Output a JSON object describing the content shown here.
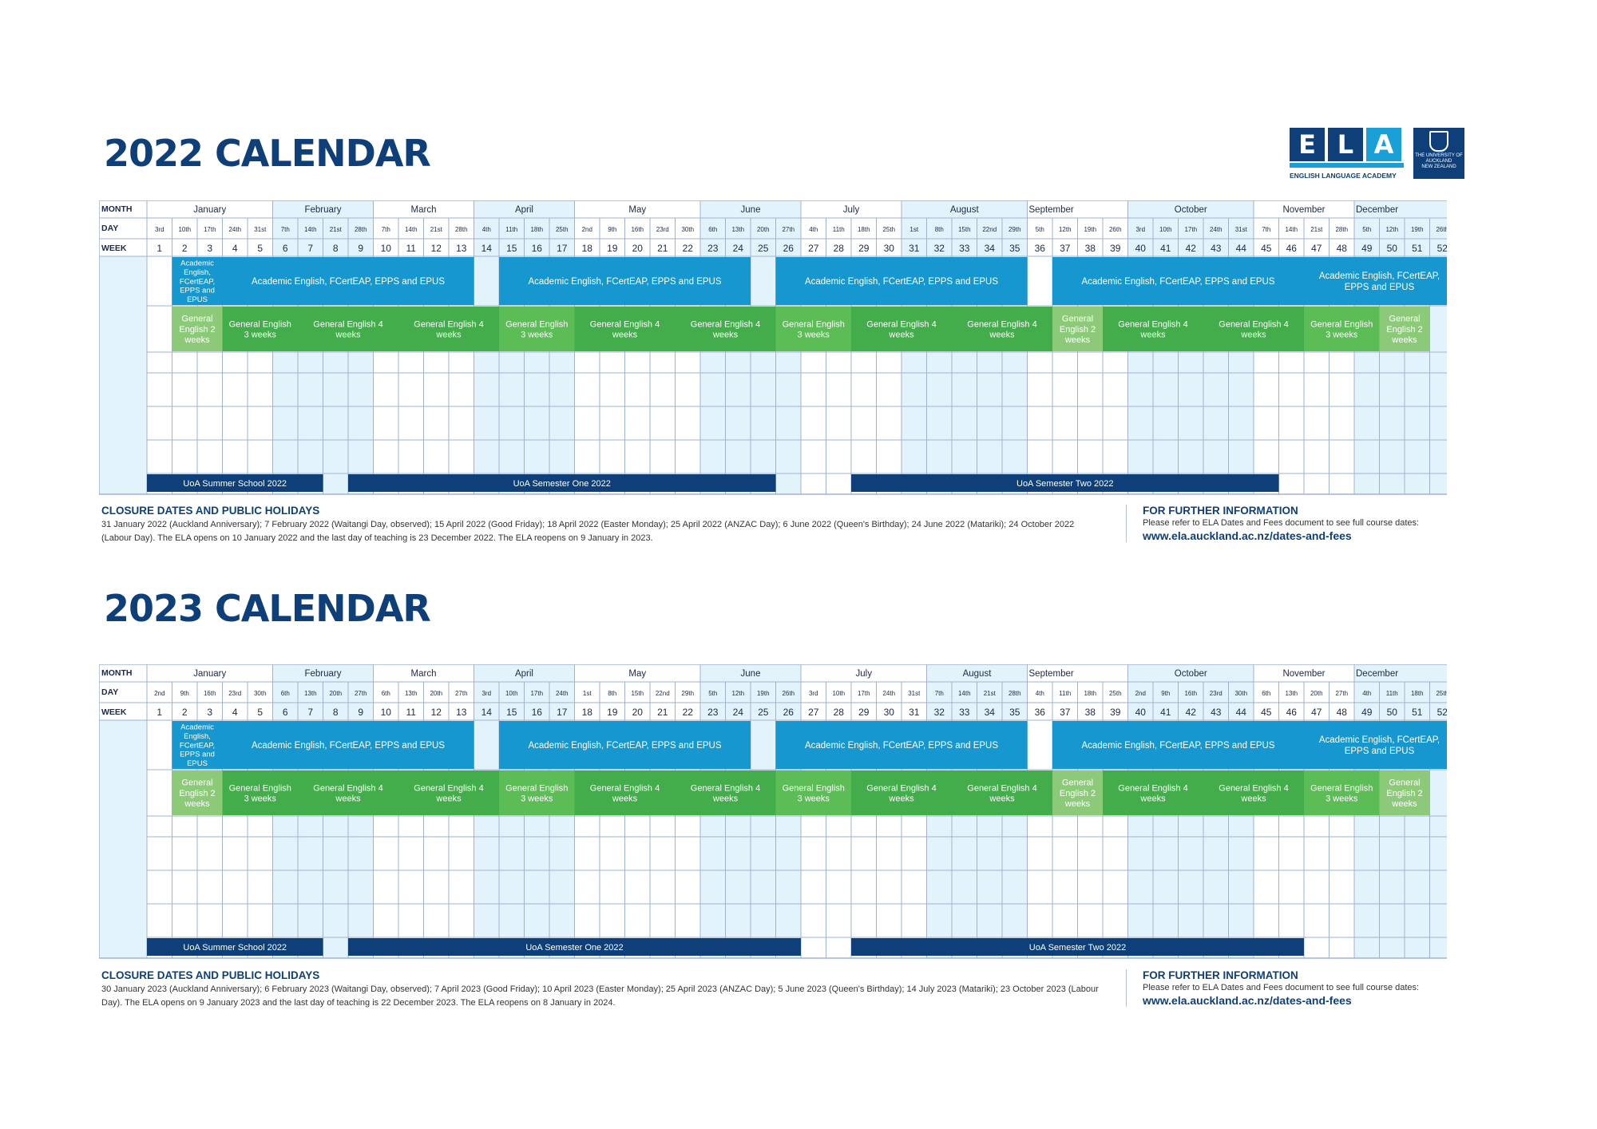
{
  "logo": {
    "letters": [
      "E",
      "L",
      "A"
    ],
    "subtitle": "ENGLISH LANGUAGE ACADEMY",
    "university": [
      "THE UNIVERSITY OF",
      "AUCKLAND",
      "NEW ZEALAND"
    ]
  },
  "row_labels": {
    "month": "MONTH",
    "day": "DAY",
    "week": "WEEK"
  },
  "colors": {
    "title": "#0e3f78",
    "grid": "#9fb3cc",
    "light_col": "#e3f3fc",
    "academic": "#1797cf",
    "general": "#42ad4a",
    "general_light": "#8cca7a",
    "uoa": "#0e3f78",
    "header_bg": "#ffffff"
  },
  "months": [
    {
      "name": "January",
      "start": 1,
      "span": 5
    },
    {
      "name": "February",
      "start": 6,
      "span": 4
    },
    {
      "name": "March",
      "start": 10,
      "span": 4
    },
    {
      "name": "April",
      "start": 14,
      "span": 4
    },
    {
      "name": "May",
      "start": 18,
      "span": 5
    },
    {
      "name": "June",
      "start": 23,
      "span": 4
    },
    {
      "name": "July",
      "start": 27,
      "span": 4
    },
    {
      "name": "August",
      "start": 31,
      "span": 5
    },
    {
      "name": "September",
      "start": 36,
      "span": 4
    },
    {
      "name": "October",
      "start": 40,
      "span": 5
    },
    {
      "name": "November",
      "start": 45,
      "span": 4
    },
    {
      "name": "December",
      "start": 49,
      "span": 4
    }
  ],
  "calendars": [
    {
      "title": "2022 CALENDAR",
      "days": [
        "3rd",
        "10th",
        "17th",
        "24th",
        "31st",
        "7th",
        "14th",
        "21st",
        "28th",
        "7th",
        "14th",
        "21st",
        "28th",
        "4th",
        "11th",
        "18th",
        "25th",
        "2nd",
        "9th",
        "16th",
        "23rd",
        "30th",
        "6th",
        "13th",
        "20th",
        "27th",
        "4th",
        "11th",
        "18th",
        "25th",
        "1st",
        "8th",
        "15th",
        "22nd",
        "29th",
        "5th",
        "12th",
        "19th",
        "26th",
        "3rd",
        "10th",
        "17th",
        "24th",
        "31st",
        "7th",
        "14th",
        "21st",
        "28th",
        "5th",
        "12th",
        "19th",
        "26th"
      ],
      "months_override": [
        {
          "name": "January",
          "start": 1,
          "span": 5
        },
        {
          "name": "February",
          "start": 6,
          "span": 4
        },
        {
          "name": "March",
          "start": 10,
          "span": 4
        },
        {
          "name": "April",
          "start": 14,
          "span": 4
        },
        {
          "name": "May",
          "start": 18,
          "span": 5
        },
        {
          "name": "June",
          "start": 23,
          "span": 4
        },
        {
          "name": "July",
          "start": 27,
          "span": 4
        },
        {
          "name": "August",
          "start": 31,
          "span": 5
        },
        {
          "name": "September",
          "start": 36,
          "span": 4
        },
        {
          "name": "October",
          "start": 40,
          "span": 5
        },
        {
          "name": "November",
          "start": 45,
          "span": 4
        },
        {
          "name": "December",
          "start": 49,
          "span": 4
        }
      ],
      "academic": [
        {
          "start": 2,
          "end": 3,
          "label": "Academic English, FCertEAP, EPPS and EPUS"
        },
        {
          "start": 4,
          "end": 13,
          "label": "Academic English, FCertEAP, EPPS and EPUS"
        },
        {
          "start": 15,
          "end": 24,
          "label": "Academic English, FCertEAP, EPPS and EPUS"
        },
        {
          "start": 26,
          "end": 35,
          "label": "Academic English, FCertEAP, EPPS and EPUS"
        },
        {
          "start": 37,
          "end": 46,
          "label": "Academic English, FCertEAP, EPPS and EPUS"
        },
        {
          "start": 47,
          "end": 52,
          "label": "Academic English, FCertEAP, EPPS and EPUS"
        }
      ],
      "general": [
        {
          "start": 2,
          "end": 3,
          "label": "General English 2 weeks",
          "tone": "light"
        },
        {
          "start": 4,
          "end": 6,
          "label": "General English 3 weeks",
          "tone": "dark"
        },
        {
          "start": 7,
          "end": 10,
          "label": "General English 4 weeks",
          "tone": "dark"
        },
        {
          "start": 11,
          "end": 14,
          "label": "General English 4 weeks",
          "tone": "dark"
        },
        {
          "start": 15,
          "end": 17,
          "label": "General English 3 weeks",
          "tone": "light2"
        },
        {
          "start": 18,
          "end": 21,
          "label": "General English 4 weeks",
          "tone": "dark"
        },
        {
          "start": 22,
          "end": 25,
          "label": "General English 4 weeks",
          "tone": "dark"
        },
        {
          "start": 26,
          "end": 28,
          "label": "General English 3 weeks",
          "tone": "light2"
        },
        {
          "start": 29,
          "end": 32,
          "label": "General English 4 weeks",
          "tone": "dark"
        },
        {
          "start": 33,
          "end": 36,
          "label": "General English 4 weeks",
          "tone": "dark"
        },
        {
          "start": 37,
          "end": 38,
          "label": "General English 2 weeks",
          "tone": "light"
        },
        {
          "start": 39,
          "end": 42,
          "label": "General English 4 weeks",
          "tone": "dark"
        },
        {
          "start": 43,
          "end": 46,
          "label": "General English 4 weeks",
          "tone": "dark"
        },
        {
          "start": 47,
          "end": 49,
          "label": "General English 3 weeks",
          "tone": "light2"
        },
        {
          "start": 50,
          "end": 51,
          "label": "General English 2 weeks",
          "tone": "light"
        }
      ],
      "uoa": [
        {
          "start": 1,
          "end": 7,
          "label": "UoA Summer School 2022"
        },
        {
          "start": 9,
          "end": 25,
          "label": "UoA Semester One 2022"
        },
        {
          "start": 29,
          "end": 45,
          "label": "UoA Semester Two 2022"
        }
      ],
      "closure_heading": "CLOSURE DATES AND PUBLIC HOLIDAYS",
      "closure_text": "31 January 2022 (Auckland Anniversary); 7 February 2022 (Waitangi Day, observed); 15 April 2022 (Good Friday); 18 April 2022 (Easter Monday); 25 April 2022 (ANZAC Day); 6 June 2022 (Queen's Birthday); 24 June 2022 (Matariki); 24 October 2022 (Labour Day). The ELA opens on 10 January 2022 and the last day of teaching is 23 December 2022. The ELA reopens on 9 January in 2023.",
      "info_heading": "FOR FURTHER INFORMATION",
      "info_text": "Please refer to ELA Dates and Fees document to see full course dates:",
      "info_link": "www.ela.auckland.ac.nz/dates-and-fees"
    },
    {
      "title": "2023 CALENDAR",
      "days": [
        "2nd",
        "9th",
        "16th",
        "23rd",
        "30th",
        "6th",
        "13th",
        "20th",
        "27th",
        "6th",
        "13th",
        "20th",
        "27th",
        "3rd",
        "10th",
        "17th",
        "24th",
        "1st",
        "8th",
        "15th",
        "22nd",
        "29th",
        "5th",
        "12th",
        "19th",
        "26th",
        "3rd",
        "10th",
        "17th",
        "24th",
        "31st",
        "7th",
        "14th",
        "21st",
        "28th",
        "4th",
        "11th",
        "18th",
        "25th",
        "2nd",
        "9th",
        "16th",
        "23rd",
        "30th",
        "6th",
        "13th",
        "20th",
        "27th",
        "4th",
        "11th",
        "18th",
        "25th"
      ],
      "months_override": [
        {
          "name": "January",
          "start": 1,
          "span": 5
        },
        {
          "name": "February",
          "start": 6,
          "span": 4
        },
        {
          "name": "March",
          "start": 10,
          "span": 4
        },
        {
          "name": "April",
          "start": 14,
          "span": 4
        },
        {
          "name": "May",
          "start": 18,
          "span": 5
        },
        {
          "name": "June",
          "start": 23,
          "span": 4
        },
        {
          "name": "July",
          "start": 27,
          "span": 5
        },
        {
          "name": "August",
          "start": 32,
          "span": 4
        },
        {
          "name": "September",
          "start": 36,
          "span": 4
        },
        {
          "name": "October",
          "start": 40,
          "span": 5
        },
        {
          "name": "November",
          "start": 45,
          "span": 4
        },
        {
          "name": "December",
          "start": 49,
          "span": 4
        }
      ],
      "academic": [
        {
          "start": 2,
          "end": 3,
          "label": "Academic English, FCertEAP, EPPS and EPUS"
        },
        {
          "start": 4,
          "end": 13,
          "label": "Academic English, FCertEAP, EPPS and EPUS"
        },
        {
          "start": 15,
          "end": 24,
          "label": "Academic English, FCertEAP, EPPS and EPUS"
        },
        {
          "start": 26,
          "end": 35,
          "label": "Academic English, FCertEAP, EPPS and EPUS"
        },
        {
          "start": 37,
          "end": 46,
          "label": "Academic English, FCertEAP, EPPS and EPUS"
        },
        {
          "start": 47,
          "end": 52,
          "label": "Academic English, FCertEAP, EPPS and EPUS"
        }
      ],
      "general": [
        {
          "start": 2,
          "end": 3,
          "label": "General English 2 weeks",
          "tone": "light"
        },
        {
          "start": 4,
          "end": 6,
          "label": "General English 3 weeks",
          "tone": "dark"
        },
        {
          "start": 7,
          "end": 10,
          "label": "General English 4 weeks",
          "tone": "dark"
        },
        {
          "start": 11,
          "end": 14,
          "label": "General English 4 weeks",
          "tone": "dark"
        },
        {
          "start": 15,
          "end": 17,
          "label": "General English 3 weeks",
          "tone": "light2"
        },
        {
          "start": 18,
          "end": 21,
          "label": "General English 4 weeks",
          "tone": "dark"
        },
        {
          "start": 22,
          "end": 25,
          "label": "General English 4 weeks",
          "tone": "dark"
        },
        {
          "start": 26,
          "end": 28,
          "label": "General English 3 weeks",
          "tone": "light2"
        },
        {
          "start": 29,
          "end": 32,
          "label": "General English 4 weeks",
          "tone": "dark"
        },
        {
          "start": 33,
          "end": 36,
          "label": "General English 4 weeks",
          "tone": "dark"
        },
        {
          "start": 37,
          "end": 38,
          "label": "General English 2 weeks",
          "tone": "light"
        },
        {
          "start": 39,
          "end": 42,
          "label": "General English 4 weeks",
          "tone": "dark"
        },
        {
          "start": 43,
          "end": 46,
          "label": "General English 4 weeks",
          "tone": "dark"
        },
        {
          "start": 47,
          "end": 49,
          "label": "General English 3 weeks",
          "tone": "light2"
        },
        {
          "start": 50,
          "end": 51,
          "label": "General English 2 weeks",
          "tone": "light"
        }
      ],
      "uoa": [
        {
          "start": 1,
          "end": 7,
          "label": "UoA Summer School 2022"
        },
        {
          "start": 9,
          "end": 26,
          "label": "UoA Semester One 2022"
        },
        {
          "start": 29,
          "end": 46,
          "label": "UoA Semester Two 2022"
        }
      ],
      "closure_heading": "CLOSURE DATES AND PUBLIC HOLIDAYS",
      "closure_text": "30 January 2023 (Auckland Anniversary); 6 February 2023 (Waitangi Day, observed); 7 April 2023 (Good Friday); 10 April 2023 (Easter Monday); 25 April 2023 (ANZAC Day); 5 June 2023 (Queen's Birthday); 14 July 2023 (Matariki); 23 October 2023 (Labour Day). The ELA opens on 9 January 2023 and the last day of teaching is 22 December 2023. The ELA reopens on 8 January in 2024.",
      "info_heading": "FOR FURTHER INFORMATION",
      "info_text": "Please refer to ELA Dates and Fees document to see full course dates:",
      "info_link": "www.ela.auckland.ac.nz/dates-and-fees"
    }
  ]
}
